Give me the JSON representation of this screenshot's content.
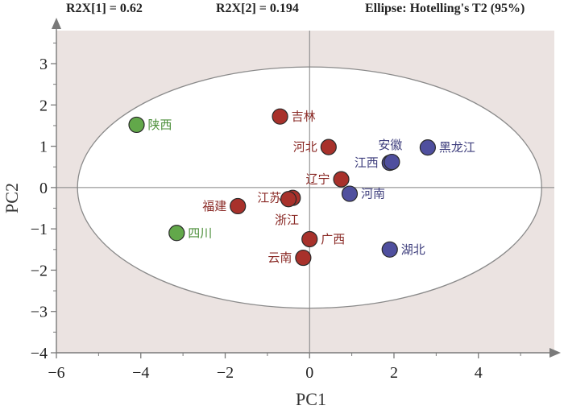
{
  "header": {
    "r2x1": "R2X[1] = 0.62",
    "r2x2": "R2X[2] = 0.194",
    "ellipse": "Ellipse: Hotelling's T2 (95%)"
  },
  "colors": {
    "plot_bg": "#ebe3e1",
    "ellipse_fill": "#ffffff",
    "red": "#a8312b",
    "blue": "#4f4f9e",
    "green": "#62a84a",
    "red_text": "#8a2a26",
    "blue_text": "#3d3d7c",
    "green_text": "#4c8f3a"
  },
  "chart_data": {
    "type": "scatter",
    "title": "",
    "xlabel": "PC1",
    "ylabel": "PC2",
    "xlim": [
      -6,
      5.8
    ],
    "ylim": [
      -4,
      3.8
    ],
    "xticks": [
      -6,
      -4,
      -2,
      0,
      2,
      4
    ],
    "yticks": [
      -4,
      -3,
      -2,
      -1,
      0,
      1,
      2,
      3
    ],
    "ellipse": {
      "center": [
        0,
        0
      ],
      "rx": 5.5,
      "ry": 2.92
    },
    "grid": false,
    "points": [
      {
        "label": "陕西",
        "x": -4.1,
        "y": 1.52,
        "group": "green",
        "anchor": "right"
      },
      {
        "label": "四川",
        "x": -3.15,
        "y": -1.1,
        "group": "green",
        "anchor": "right"
      },
      {
        "label": "吉林",
        "x": -0.7,
        "y": 1.72,
        "group": "red",
        "anchor": "right"
      },
      {
        "label": "河北",
        "x": 0.45,
        "y": 0.98,
        "group": "red",
        "anchor": "left"
      },
      {
        "label": "辽宁",
        "x": 0.75,
        "y": 0.2,
        "group": "red",
        "anchor": "left"
      },
      {
        "label": "江苏",
        "x": -0.4,
        "y": -0.25,
        "group": "red",
        "anchor": "left"
      },
      {
        "label": "浙江",
        "x": -0.5,
        "y": -0.28,
        "group": "red",
        "anchor": "below"
      },
      {
        "label": "福建",
        "x": -1.7,
        "y": -0.45,
        "group": "red",
        "anchor": "left"
      },
      {
        "label": "广西",
        "x": 0.0,
        "y": -1.25,
        "group": "red",
        "anchor": "right"
      },
      {
        "label": "云南",
        "x": -0.15,
        "y": -1.7,
        "group": "red",
        "anchor": "left"
      },
      {
        "label": "江西",
        "x": 1.9,
        "y": 0.6,
        "group": "blue",
        "anchor": "left"
      },
      {
        "label": "安徽",
        "x": 1.95,
        "y": 0.62,
        "group": "blue",
        "anchor": "above"
      },
      {
        "label": "河南",
        "x": 0.95,
        "y": -0.15,
        "group": "blue",
        "anchor": "right"
      },
      {
        "label": "黑龙江",
        "x": 2.8,
        "y": 0.97,
        "group": "blue",
        "anchor": "right"
      },
      {
        "label": "湖北",
        "x": 1.9,
        "y": -1.5,
        "group": "blue",
        "anchor": "right"
      }
    ]
  }
}
